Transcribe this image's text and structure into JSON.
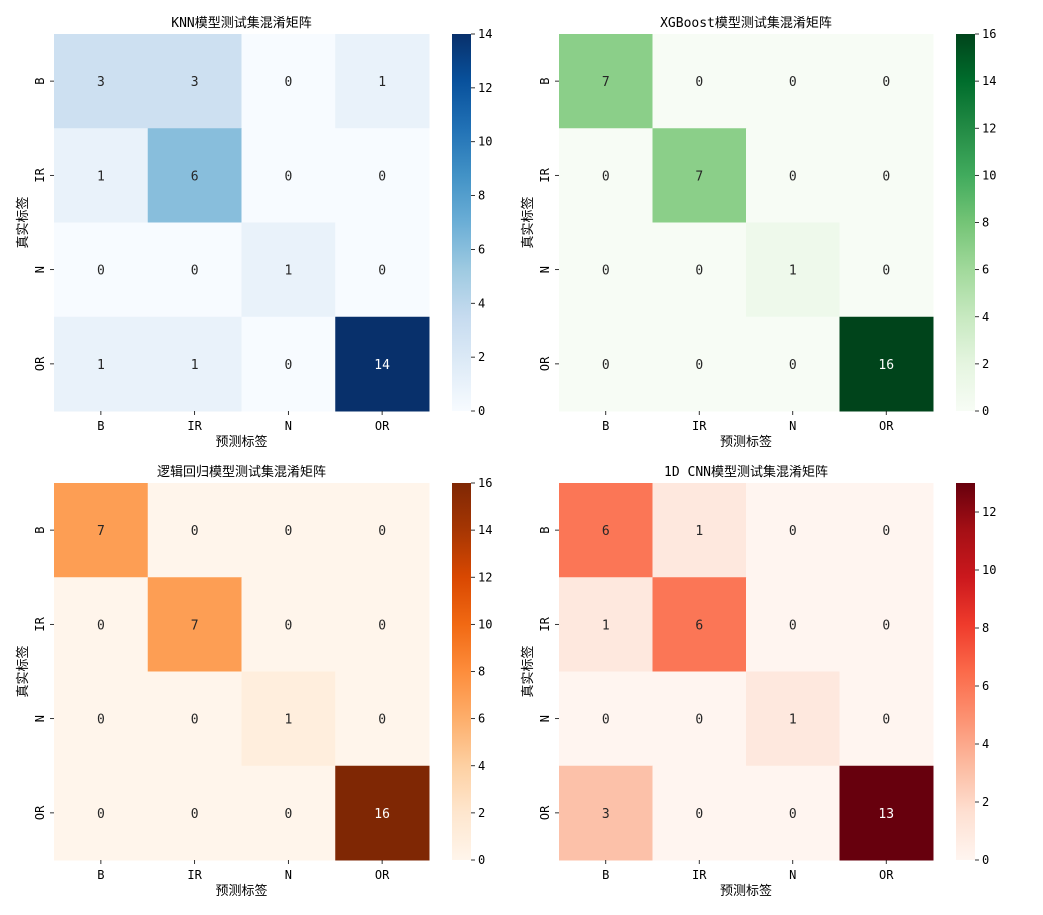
{
  "chart_data": [
    {
      "type": "heatmap",
      "title": "KNN模型测试集混淆矩阵",
      "xlabel": "预测标签",
      "ylabel": "真实标签",
      "x_categories": [
        "B",
        "IR",
        "N",
        "OR"
      ],
      "y_categories": [
        "B",
        "IR",
        "N",
        "OR"
      ],
      "matrix": [
        [
          3,
          3,
          0,
          1
        ],
        [
          1,
          6,
          0,
          0
        ],
        [
          0,
          0,
          1,
          0
        ],
        [
          1,
          1,
          0,
          14
        ]
      ],
      "vmin": 0,
      "vmax": 14,
      "colorbar_ticks": [
        0,
        2,
        4,
        6,
        8,
        10,
        12,
        14
      ],
      "colormap": "Blues",
      "colorbar_labels": [
        "0",
        "2",
        "4",
        "6",
        "8",
        "10",
        "12",
        "14"
      ]
    },
    {
      "type": "heatmap",
      "title": "XGBoost模型测试集混淆矩阵",
      "xlabel": "预测标签",
      "ylabel": "真实标签",
      "x_categories": [
        "B",
        "IR",
        "N",
        "OR"
      ],
      "y_categories": [
        "B",
        "IR",
        "N",
        "OR"
      ],
      "matrix": [
        [
          7,
          0,
          0,
          0
        ],
        [
          0,
          7,
          0,
          0
        ],
        [
          0,
          0,
          1,
          0
        ],
        [
          0,
          0,
          0,
          16
        ]
      ],
      "vmin": 0,
      "vmax": 16,
      "colorbar_ticks": [
        0,
        2,
        4,
        6,
        8,
        10,
        12,
        14,
        16
      ],
      "colormap": "Greens",
      "colorbar_labels": [
        "0",
        "2",
        "4",
        "6",
        "8",
        "10",
        "12",
        "14",
        "16"
      ]
    },
    {
      "type": "heatmap",
      "title": "逻辑回归模型测试集混淆矩阵",
      "xlabel": "预测标签",
      "ylabel": "真实标签",
      "x_categories": [
        "B",
        "IR",
        "N",
        "OR"
      ],
      "y_categories": [
        "B",
        "IR",
        "N",
        "OR"
      ],
      "matrix": [
        [
          7,
          0,
          0,
          0
        ],
        [
          0,
          7,
          0,
          0
        ],
        [
          0,
          0,
          1,
          0
        ],
        [
          0,
          0,
          0,
          16
        ]
      ],
      "vmin": 0,
      "vmax": 16,
      "colorbar_ticks": [
        0,
        2,
        4,
        6,
        8,
        10,
        12,
        14,
        16
      ],
      "colormap": "Oranges",
      "colorbar_labels": [
        "0",
        "2",
        "4",
        "6",
        "8",
        "10",
        "12",
        "14",
        "16"
      ]
    },
    {
      "type": "heatmap",
      "title": "1D CNN模型测试集混淆矩阵",
      "xlabel": "预测标签",
      "ylabel": "真实标签",
      "x_categories": [
        "B",
        "IR",
        "N",
        "OR"
      ],
      "y_categories": [
        "B",
        "IR",
        "N",
        "OR"
      ],
      "matrix": [
        [
          6,
          1,
          0,
          0
        ],
        [
          1,
          6,
          0,
          0
        ],
        [
          0,
          0,
          1,
          0
        ],
        [
          3,
          0,
          0,
          13
        ]
      ],
      "vmin": 0,
      "vmax": 13,
      "colorbar_ticks": [
        0,
        2,
        4,
        6,
        8,
        10,
        12
      ],
      "colormap": "Reds",
      "colorbar_labels": [
        "0",
        "2",
        "4",
        "6",
        "8",
        "10",
        "12"
      ]
    }
  ],
  "colormaps": {
    "Blues": [
      "#f7fbff",
      "#deebf7",
      "#c6dbef",
      "#9ecae1",
      "#6baed6",
      "#4292c6",
      "#2171b5",
      "#08519c",
      "#08306b"
    ],
    "Greens": [
      "#f7fcf5",
      "#e5f5e0",
      "#c7e9c0",
      "#a1d99b",
      "#74c476",
      "#41ab5d",
      "#238b45",
      "#006d2c",
      "#00441b"
    ],
    "Oranges": [
      "#fff5eb",
      "#fee6ce",
      "#fdd0a2",
      "#fdae6b",
      "#fd8d3c",
      "#f16913",
      "#d94801",
      "#a63603",
      "#7f2704"
    ],
    "Reds": [
      "#fff5f0",
      "#fee0d2",
      "#fcbba1",
      "#fc9272",
      "#fb6a4a",
      "#ef3b2c",
      "#cb181d",
      "#a50f15",
      "#67000d"
    ]
  },
  "text_colors": {
    "dark": "#262626",
    "light": "#ffffff"
  }
}
